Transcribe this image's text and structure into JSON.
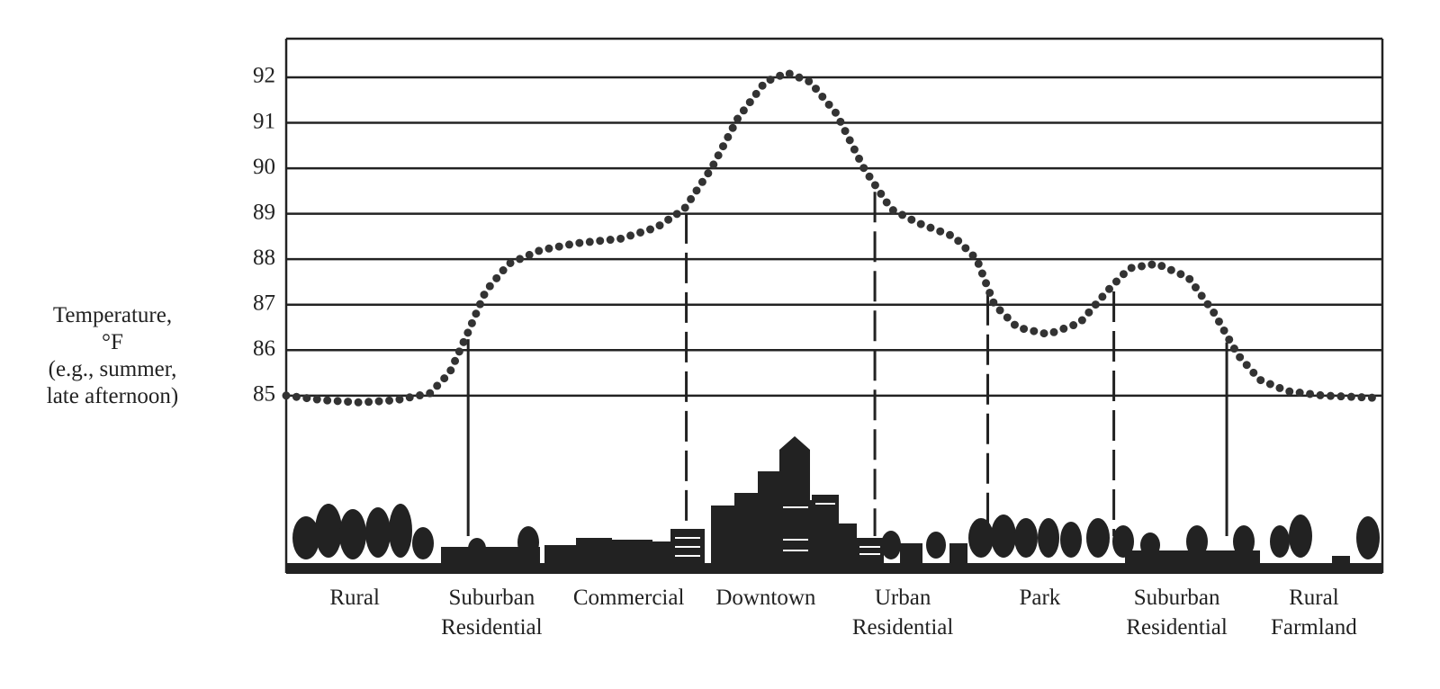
{
  "chart_data": {
    "type": "line",
    "y_label": [
      "Temperature,",
      "°F",
      "(e.g., summer,",
      "late afternoon)"
    ],
    "categories": [
      "Rural",
      "Suburban Residential",
      "Commercial",
      "Downtown",
      "Urban Residential",
      "Park",
      "Suburban Residential",
      "Rural Farmland"
    ],
    "x": [
      0,
      3.4,
      6.7,
      10.0,
      13.1,
      14.9,
      16.6,
      18.2,
      20.3,
      23.2,
      26.4,
      30.5,
      33.8,
      36.3,
      38.8,
      41.2,
      43.7,
      45.7,
      47.8,
      50.2,
      52.7,
      55.2,
      57.6,
      60.9,
      63.0,
      64.6,
      66.7,
      69.5,
      72.4,
      74.9,
      76.9,
      79.4,
      82.3,
      84.7,
      86.8,
      88.8,
      91.3,
      94.6,
      99.5
    ],
    "series": [
      {
        "color": "#333333",
        "values": [
          85.0,
          84.9,
          84.85,
          84.9,
          85.05,
          85.5,
          86.4,
          87.3,
          87.9,
          88.2,
          88.35,
          88.45,
          88.7,
          89.1,
          90.0,
          91.1,
          91.9,
          92.1,
          91.9,
          91.2,
          90.0,
          89.1,
          88.8,
          88.5,
          88.0,
          87.0,
          86.5,
          86.35,
          86.6,
          87.3,
          87.8,
          87.9,
          87.6,
          86.8,
          85.9,
          85.35,
          85.1,
          85.0,
          84.95
        ]
      }
    ],
    "dividers": [
      {
        "x": 16.6,
        "style": "solid"
      },
      {
        "x": 36.5,
        "style": "dashed"
      },
      {
        "x": 53.7,
        "style": "dashed"
      },
      {
        "x": 64.0,
        "style": "dashed"
      },
      {
        "x": 75.5,
        "style": "dashed"
      },
      {
        "x": 85.8,
        "style": "solid"
      }
    ],
    "xlim": [
      0,
      100
    ],
    "ylim": [
      81.1,
      92.85
    ],
    "yticks": [
      85,
      86,
      87,
      88,
      89,
      90,
      91,
      92
    ],
    "grid": true
  }
}
